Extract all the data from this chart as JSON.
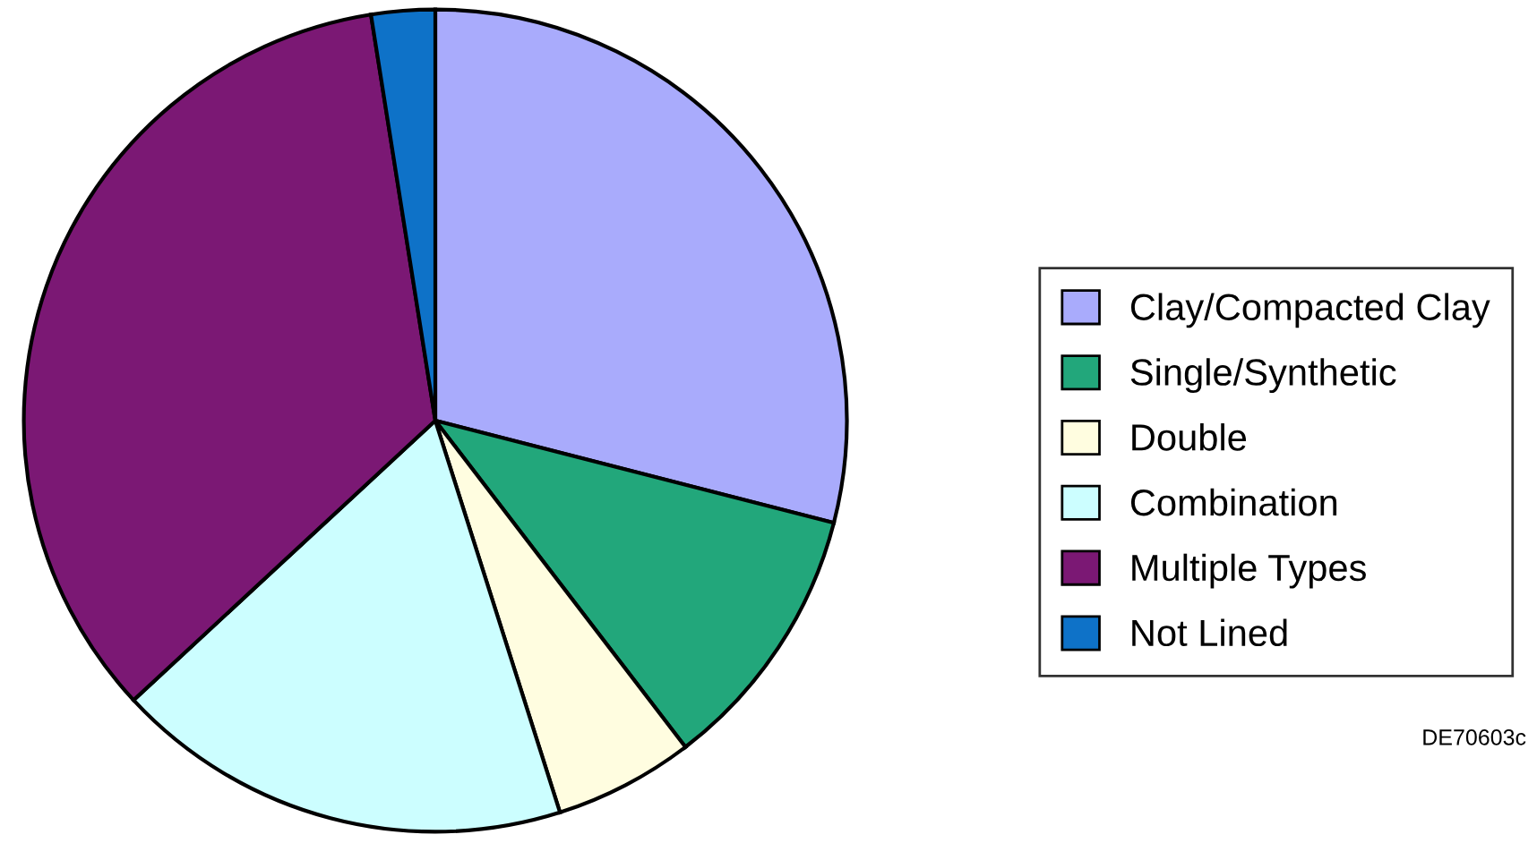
{
  "chart_data": {
    "type": "pie",
    "categories": [
      "Clay/Compacted Clay",
      "Single/Synthetic",
      "Double",
      "Combination",
      "Multiple Types",
      "Not Lined"
    ],
    "values": [
      29.0,
      10.6,
      5.5,
      18.0,
      34.4,
      2.5
    ],
    "colors": [
      "#a9abfc",
      "#22a77b",
      "#fffde0",
      "#ccfeff",
      "#7b1874",
      "#0e72c8"
    ],
    "legend": "right",
    "annotations": [
      "DE70603c"
    ]
  }
}
